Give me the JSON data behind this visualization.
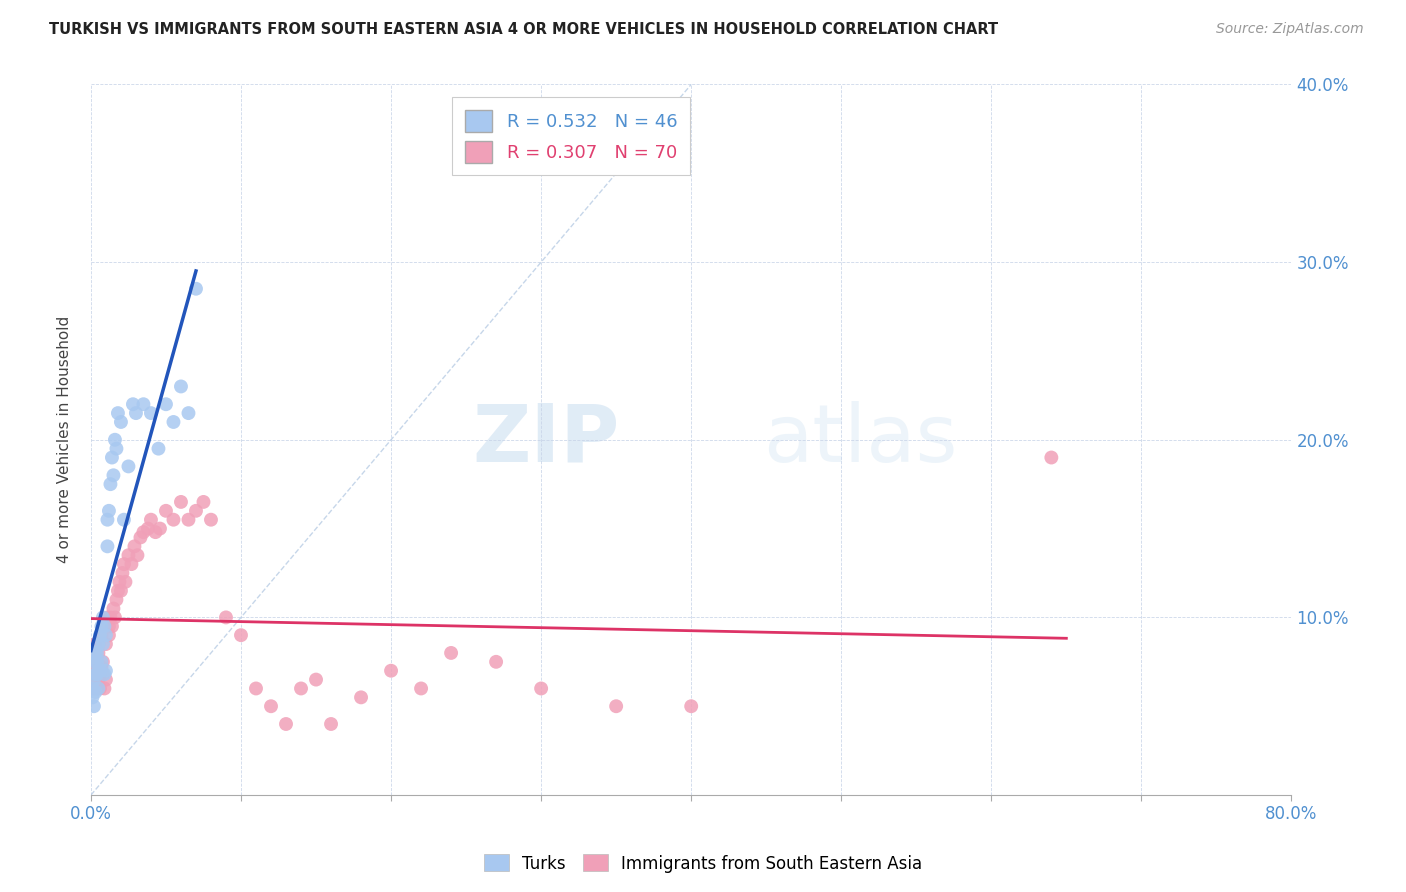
{
  "title": "TURKISH VS IMMIGRANTS FROM SOUTH EASTERN ASIA 4 OR MORE VEHICLES IN HOUSEHOLD CORRELATION CHART",
  "source": "Source: ZipAtlas.com",
  "ylabel": "4 or more Vehicles in Household",
  "xlim": [
    0.0,
    0.8
  ],
  "ylim": [
    0.0,
    0.4
  ],
  "turks_R": 0.532,
  "turks_N": 46,
  "immigrants_R": 0.307,
  "immigrants_N": 70,
  "turks_color": "#a8c8f0",
  "turks_line_color": "#2255bb",
  "immigrants_color": "#f0a0b8",
  "immigrants_line_color": "#dd3366",
  "diagonal_color": "#b8cce4",
  "watermark_zip": "ZIP",
  "watermark_atlas": "atlas",
  "turks_scatter_x": [
    0.001,
    0.001,
    0.002,
    0.002,
    0.002,
    0.003,
    0.003,
    0.003,
    0.004,
    0.004,
    0.004,
    0.005,
    0.005,
    0.005,
    0.006,
    0.006,
    0.007,
    0.007,
    0.008,
    0.008,
    0.009,
    0.009,
    0.01,
    0.01,
    0.011,
    0.011,
    0.012,
    0.013,
    0.014,
    0.015,
    0.016,
    0.017,
    0.018,
    0.02,
    0.022,
    0.025,
    0.028,
    0.03,
    0.035,
    0.04,
    0.045,
    0.05,
    0.055,
    0.06,
    0.065,
    0.07
  ],
  "turks_scatter_y": [
    0.06,
    0.055,
    0.075,
    0.065,
    0.05,
    0.08,
    0.068,
    0.058,
    0.075,
    0.08,
    0.068,
    0.07,
    0.06,
    0.085,
    0.09,
    0.07,
    0.095,
    0.075,
    0.1,
    0.085,
    0.095,
    0.068,
    0.09,
    0.07,
    0.14,
    0.155,
    0.16,
    0.175,
    0.19,
    0.18,
    0.2,
    0.195,
    0.215,
    0.21,
    0.155,
    0.185,
    0.22,
    0.215,
    0.22,
    0.215,
    0.195,
    0.22,
    0.21,
    0.23,
    0.215,
    0.285
  ],
  "immigrants_scatter_x": [
    0.001,
    0.001,
    0.002,
    0.002,
    0.002,
    0.003,
    0.003,
    0.004,
    0.004,
    0.005,
    0.005,
    0.005,
    0.006,
    0.006,
    0.007,
    0.007,
    0.008,
    0.008,
    0.009,
    0.009,
    0.01,
    0.01,
    0.011,
    0.012,
    0.012,
    0.013,
    0.014,
    0.015,
    0.016,
    0.017,
    0.018,
    0.019,
    0.02,
    0.021,
    0.022,
    0.023,
    0.025,
    0.027,
    0.029,
    0.031,
    0.033,
    0.035,
    0.038,
    0.04,
    0.043,
    0.046,
    0.05,
    0.055,
    0.06,
    0.065,
    0.07,
    0.075,
    0.08,
    0.09,
    0.1,
    0.11,
    0.12,
    0.13,
    0.14,
    0.15,
    0.16,
    0.18,
    0.2,
    0.22,
    0.24,
    0.27,
    0.3,
    0.35,
    0.4,
    0.64
  ],
  "immigrants_scatter_y": [
    0.075,
    0.065,
    0.08,
    0.06,
    0.07,
    0.085,
    0.068,
    0.072,
    0.06,
    0.08,
    0.065,
    0.085,
    0.068,
    0.06,
    0.072,
    0.09,
    0.075,
    0.068,
    0.095,
    0.06,
    0.085,
    0.065,
    0.1,
    0.09,
    0.095,
    0.1,
    0.095,
    0.105,
    0.1,
    0.11,
    0.115,
    0.12,
    0.115,
    0.125,
    0.13,
    0.12,
    0.135,
    0.13,
    0.14,
    0.135,
    0.145,
    0.148,
    0.15,
    0.155,
    0.148,
    0.15,
    0.16,
    0.155,
    0.165,
    0.155,
    0.16,
    0.165,
    0.155,
    0.1,
    0.09,
    0.06,
    0.05,
    0.04,
    0.06,
    0.065,
    0.04,
    0.055,
    0.07,
    0.06,
    0.08,
    0.075,
    0.06,
    0.05,
    0.05,
    0.19
  ]
}
